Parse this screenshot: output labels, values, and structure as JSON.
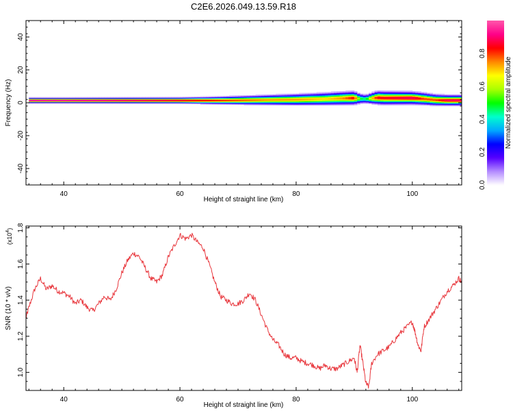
{
  "title": "C2E6.2026.049.13.59.R18",
  "chart_data": [
    {
      "type": "heatmap",
      "name": "spectrogram",
      "xlabel": "Height of straight line (km)",
      "ylabel": "Frequency (Hz)",
      "xlim": [
        33.5,
        108.5
      ],
      "ylim": [
        -50,
        50
      ],
      "xticks": [
        40,
        60,
        80,
        100
      ],
      "xtick_labels": [
        "40",
        "60",
        "80",
        "100"
      ],
      "yticks": [
        -40,
        -20,
        0,
        20,
        40
      ],
      "ytick_labels": [
        "-40",
        "-20",
        "0",
        "20",
        "40"
      ],
      "ridge": {
        "x": [
          34,
          40,
          50,
          60,
          65,
          70,
          75,
          80,
          85,
          88,
          90,
          91,
          92,
          93,
          94,
          95,
          100,
          102,
          104,
          106,
          108.5
        ],
        "center_hz": [
          1.5,
          1.5,
          1.5,
          1.5,
          1.5,
          1.6,
          1.8,
          2.0,
          2.4,
          2.8,
          3.0,
          2.6,
          2.4,
          2.8,
          3.2,
          3.0,
          3.0,
          2.5,
          1.8,
          1.6,
          1.6
        ],
        "halfwidth_hz": [
          1.5,
          1.5,
          1.6,
          1.7,
          2.0,
          2.4,
          2.8,
          3.2,
          3.6,
          3.8,
          3.8,
          3.0,
          2.6,
          3.2,
          3.8,
          3.8,
          3.6,
          3.5,
          3.2,
          3.0,
          3.0
        ],
        "peak_amplitude": [
          1.0,
          1.0,
          0.95,
          0.9,
          0.85,
          0.8,
          0.75,
          0.75,
          0.7,
          0.75,
          0.85,
          0.5,
          0.45,
          0.7,
          0.85,
          0.85,
          0.9,
          0.8,
          0.8,
          0.9,
          0.9
        ]
      },
      "colorbar": {
        "label": "Normalized spectral amplitude",
        "range": [
          0,
          1
        ],
        "ticks": [
          0.0,
          0.2,
          0.4,
          0.6,
          0.8
        ],
        "tick_labels": [
          "0.0",
          "0.2",
          "0.4",
          "0.6",
          "0.8"
        ],
        "colors": [
          "#ffffff",
          "#b48cff",
          "#5500ff",
          "#0000ff",
          "#00aaff",
          "#00ffcc",
          "#00ff00",
          "#aaff00",
          "#ffff00",
          "#ff8800",
          "#ff0000",
          "#ff0088",
          "#ff55aa"
        ]
      }
    },
    {
      "type": "line",
      "name": "snr",
      "xlabel": "Height of straight line (km)",
      "ylabel": "SNR (10 * v/v)",
      "y_multiplier": "(x10^4)",
      "multiplier_base": "(x10",
      "multiplier_exp": "4",
      "multiplier_close": ")",
      "xlim": [
        33.5,
        108.5
      ],
      "ylim": [
        0.9,
        1.81
      ],
      "xticks": [
        40,
        60,
        80,
        100
      ],
      "xtick_labels": [
        "40",
        "60",
        "80",
        "100"
      ],
      "yticks": [
        1.0,
        1.2,
        1.4,
        1.6,
        1.8
      ],
      "ytick_labels": [
        "1.0",
        "1.2",
        "1.4",
        "1.6",
        "1.8"
      ],
      "color": "#e8363c",
      "series": {
        "x": [
          33.5,
          34,
          35,
          36,
          37,
          38,
          39,
          40,
          41,
          42,
          43,
          44,
          45,
          46,
          47,
          48,
          49,
          50,
          51,
          52,
          53,
          54,
          55,
          56,
          57,
          58,
          59,
          60,
          61,
          62,
          63,
          64,
          65,
          66,
          67,
          68,
          69,
          70,
          71,
          72,
          73,
          74,
          75,
          76,
          77,
          78,
          79,
          80,
          81,
          82,
          83,
          84,
          85,
          86,
          87,
          88,
          89,
          90,
          90.5,
          91,
          91.5,
          92,
          92.5,
          93,
          94,
          95,
          96,
          97,
          98,
          99,
          100,
          100.5,
          101,
          101.5,
          102,
          103,
          104,
          105,
          106,
          107,
          108,
          108.5
        ],
        "y": [
          1.3,
          1.36,
          1.46,
          1.52,
          1.46,
          1.48,
          1.45,
          1.44,
          1.42,
          1.38,
          1.4,
          1.36,
          1.34,
          1.38,
          1.42,
          1.4,
          1.46,
          1.55,
          1.62,
          1.66,
          1.64,
          1.58,
          1.52,
          1.5,
          1.54,
          1.64,
          1.7,
          1.76,
          1.74,
          1.76,
          1.72,
          1.69,
          1.6,
          1.5,
          1.42,
          1.4,
          1.38,
          1.38,
          1.4,
          1.44,
          1.4,
          1.32,
          1.24,
          1.18,
          1.15,
          1.1,
          1.08,
          1.08,
          1.06,
          1.05,
          1.04,
          1.02,
          1.04,
          1.02,
          1.02,
          1.04,
          1.06,
          1.08,
          1.0,
          1.15,
          1.05,
          0.94,
          0.92,
          1.05,
          1.1,
          1.12,
          1.14,
          1.18,
          1.22,
          1.25,
          1.28,
          1.22,
          1.15,
          1.12,
          1.25,
          1.3,
          1.35,
          1.4,
          1.45,
          1.48,
          1.52,
          1.5
        ]
      }
    }
  ]
}
